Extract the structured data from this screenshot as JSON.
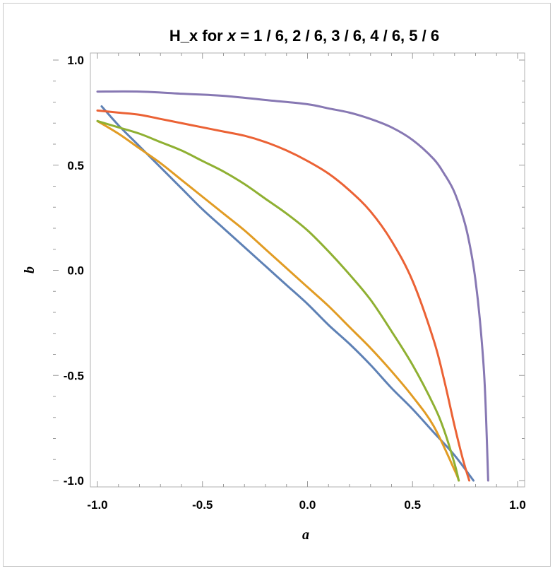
{
  "chart_data": {
    "type": "line",
    "title": {
      "pre": "H_x for ",
      "var": "x",
      "post": " = 1 / 6, 2 / 6, 3 / 6, 4 / 6, 5 / 6"
    },
    "xlabel": "a",
    "ylabel": "b",
    "xlim": [
      -1.0,
      1.0
    ],
    "ylim": [
      -1.0,
      1.0
    ],
    "xticks": [
      -1.0,
      -0.5,
      0.0,
      0.5,
      1.0
    ],
    "xtick_labels": [
      "-1.0",
      "-0.5",
      "0.0",
      "0.5",
      "1.0"
    ],
    "yticks": [
      1.0,
      0.5,
      0.0,
      -0.5,
      -1.0
    ],
    "ytick_labels": [
      "1.0",
      "0.5",
      "0.0",
      "-0.5",
      "-1.0"
    ],
    "grid": false,
    "legend": "none",
    "series": [
      {
        "color": "#5E81B5",
        "x": [
          -0.98,
          -0.9,
          -0.8,
          -0.7,
          -0.6,
          -0.5,
          -0.4,
          -0.3,
          -0.2,
          -0.1,
          0.0,
          0.1,
          0.2,
          0.3,
          0.4,
          0.5,
          0.6,
          0.7,
          0.79
        ],
        "y": [
          0.78,
          0.69,
          0.59,
          0.49,
          0.39,
          0.29,
          0.2,
          0.11,
          0.02,
          -0.07,
          -0.16,
          -0.26,
          -0.35,
          -0.45,
          -0.56,
          -0.66,
          -0.77,
          -0.88,
          -1.0
        ]
      },
      {
        "color": "#E19C24",
        "x": [
          -1.0,
          -0.9,
          -0.8,
          -0.7,
          -0.6,
          -0.5,
          -0.4,
          -0.3,
          -0.2,
          -0.1,
          0.0,
          0.1,
          0.2,
          0.3,
          0.4,
          0.5,
          0.6,
          0.7,
          0.72
        ],
        "y": [
          0.71,
          0.65,
          0.58,
          0.51,
          0.43,
          0.35,
          0.27,
          0.19,
          0.1,
          0.01,
          -0.08,
          -0.17,
          -0.27,
          -0.37,
          -0.48,
          -0.6,
          -0.74,
          -0.95,
          -1.0
        ]
      },
      {
        "color": "#8FB032",
        "x": [
          -1.0,
          -0.9,
          -0.8,
          -0.7,
          -0.6,
          -0.5,
          -0.4,
          -0.3,
          -0.2,
          -0.1,
          0.0,
          0.1,
          0.2,
          0.3,
          0.4,
          0.5,
          0.6,
          0.65,
          0.7,
          0.72
        ],
        "y": [
          0.71,
          0.68,
          0.65,
          0.61,
          0.57,
          0.52,
          0.47,
          0.41,
          0.34,
          0.27,
          0.19,
          0.09,
          -0.02,
          -0.14,
          -0.29,
          -0.45,
          -0.64,
          -0.76,
          -0.92,
          -1.0
        ]
      },
      {
        "color": "#EB6235",
        "x": [
          -1.0,
          -0.9,
          -0.8,
          -0.7,
          -0.6,
          -0.5,
          -0.4,
          -0.3,
          -0.2,
          -0.1,
          0.0,
          0.1,
          0.2,
          0.3,
          0.4,
          0.5,
          0.6,
          0.65,
          0.7,
          0.74,
          0.77
        ],
        "y": [
          0.76,
          0.75,
          0.74,
          0.72,
          0.7,
          0.68,
          0.66,
          0.64,
          0.61,
          0.57,
          0.52,
          0.46,
          0.38,
          0.28,
          0.14,
          -0.05,
          -0.33,
          -0.52,
          -0.74,
          -0.9,
          -1.0
        ]
      },
      {
        "color": "#8778B3",
        "x": [
          -1.0,
          -0.8,
          -0.6,
          -0.4,
          -0.2,
          0.0,
          0.1,
          0.2,
          0.3,
          0.4,
          0.5,
          0.6,
          0.65,
          0.7,
          0.75,
          0.78,
          0.8,
          0.82,
          0.84,
          0.85,
          0.86
        ],
        "y": [
          0.85,
          0.85,
          0.84,
          0.83,
          0.81,
          0.79,
          0.77,
          0.75,
          0.72,
          0.68,
          0.62,
          0.53,
          0.46,
          0.37,
          0.22,
          0.08,
          -0.05,
          -0.23,
          -0.48,
          -0.7,
          -1.0
        ]
      }
    ]
  }
}
